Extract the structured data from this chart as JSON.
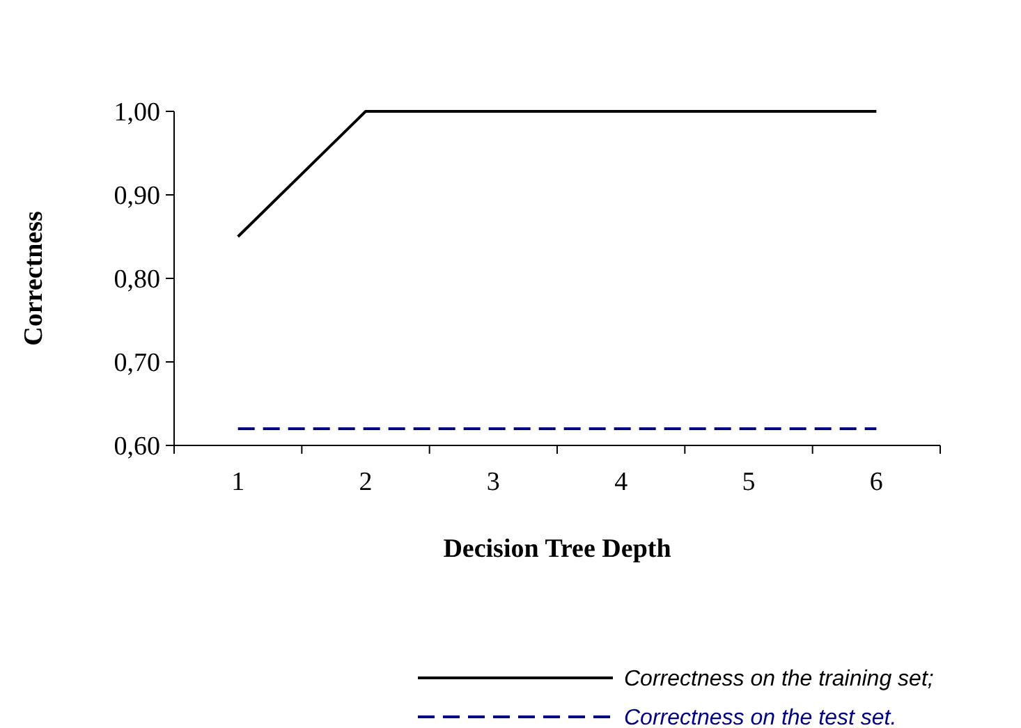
{
  "chart_data": {
    "type": "line",
    "xlabel": "Decision Tree Depth",
    "ylabel": "Correctness",
    "categories": [
      "1",
      "2",
      "3",
      "4",
      "5",
      "6"
    ],
    "ylim": [
      0.6,
      1.0
    ],
    "yticks": [
      {
        "value": 0.6,
        "label": "0,60"
      },
      {
        "value": 0.7,
        "label": "0,70"
      },
      {
        "value": 0.8,
        "label": "0,80"
      },
      {
        "value": 0.9,
        "label": "0,90"
      },
      {
        "value": 1.0,
        "label": "1,00"
      }
    ],
    "series": [
      {
        "name": "Correctness on the training set;",
        "color": "#000000",
        "line_style": "solid",
        "values": [
          0.85,
          1.0,
          1.0,
          1.0,
          1.0,
          1.0
        ]
      },
      {
        "name": "Correctness on the test set.",
        "color": "#000080",
        "line_style": "dashed",
        "values": [
          0.62,
          0.62,
          0.62,
          0.62,
          0.62,
          0.62
        ]
      }
    ],
    "grid": false,
    "legend": "bottom",
    "marker": "none"
  }
}
